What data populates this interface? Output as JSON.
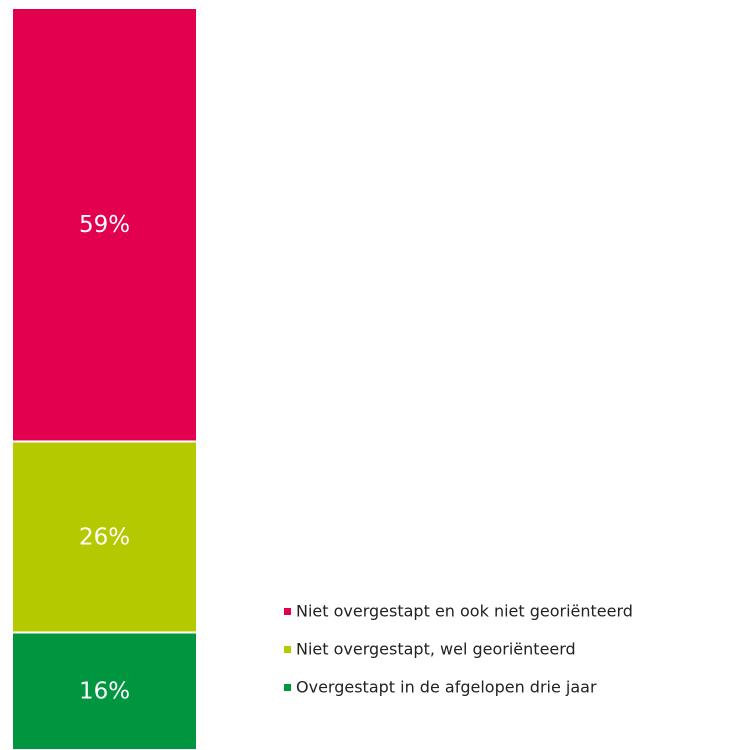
{
  "chart_data": {
    "type": "stacked-bar",
    "categories": [
      null
    ],
    "series": [
      {
        "name": "Overgestapt in de afgelopen drie jaar",
        "color": "#00963f",
        "values": [
          16
        ],
        "value_labels": [
          "16%"
        ]
      },
      {
        "name": "Niet overgestapt, wel georiënteerd",
        "color": "#b5c900",
        "values": [
          26
        ],
        "value_labels": [
          "26%"
        ]
      },
      {
        "name": "Niet overgestapt en ook niet georiënteerd",
        "color": "#e2004f",
        "values": [
          59
        ],
        "value_labels": [
          "59%"
        ]
      }
    ],
    "ylim": [
      0,
      101
    ],
    "legend": "right"
  }
}
